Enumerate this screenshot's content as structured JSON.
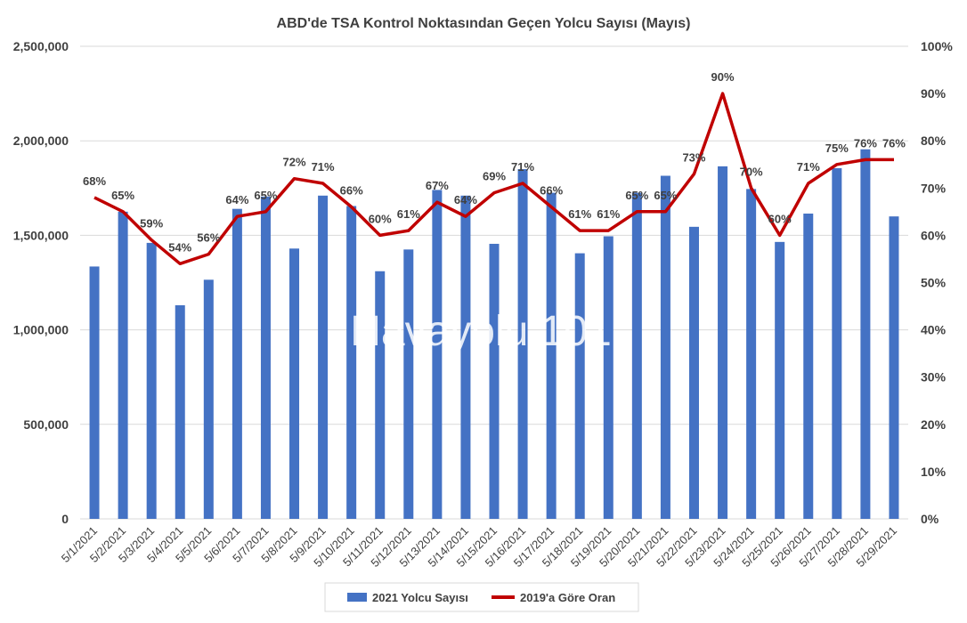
{
  "watermark": "Havayolu 101",
  "colors": {
    "bars": "#4472C4",
    "line": "#C00000",
    "grid": "#D9D9D9",
    "text": "#404040"
  },
  "chart_data": {
    "type": "bar",
    "title": "ABD'de TSA Kontrol Noktasından Geçen Yolcu Sayısı (Mayıs)",
    "categories": [
      "5/1/2021",
      "5/2/2021",
      "5/3/2021",
      "5/4/2021",
      "5/5/2021",
      "5/6/2021",
      "5/7/2021",
      "5/8/2021",
      "5/9/2021",
      "5/10/2021",
      "5/11/2021",
      "5/12/2021",
      "5/13/2021",
      "5/14/2021",
      "5/15/2021",
      "5/16/2021",
      "5/17/2021",
      "5/18/2021",
      "5/19/2021",
      "5/20/2021",
      "5/21/2021",
      "5/22/2021",
      "5/23/2021",
      "5/24/2021",
      "5/25/2021",
      "5/26/2021",
      "5/27/2021",
      "5/28/2021",
      "5/29/2021"
    ],
    "series": [
      {
        "name": "2021 Yolcu Sayısı",
        "type": "bar",
        "axis": "left",
        "values": [
          1335000,
          1625000,
          1460000,
          1130000,
          1265000,
          1640000,
          1705000,
          1430000,
          1710000,
          1655000,
          1310000,
          1425000,
          1740000,
          1710000,
          1455000,
          1850000,
          1725000,
          1405000,
          1495000,
          1725000,
          1815000,
          1545000,
          1865000,
          1745000,
          1465000,
          1615000,
          1855000,
          1955000,
          1600000
        ]
      },
      {
        "name": "2019'a Göre Oran",
        "type": "line",
        "axis": "right",
        "values": [
          68,
          65,
          59,
          54,
          56,
          64,
          65,
          72,
          71,
          66,
          60,
          61,
          67,
          64,
          69,
          71,
          66,
          61,
          61,
          65,
          65,
          73,
          90,
          70,
          60,
          71,
          75,
          76,
          76
        ],
        "labels": [
          "68%",
          "65%",
          "59%",
          "54%",
          "56%",
          "64%",
          "65%",
          "72%",
          "71%",
          "66%",
          "60%",
          "61%",
          "67%",
          "64%",
          "69%",
          "71%",
          "66%",
          "61%",
          "61%",
          "65%",
          "65%",
          "73%",
          "90%",
          "70%",
          "60%",
          "71%",
          "75%",
          "76%",
          "76%"
        ]
      }
    ],
    "y_left": {
      "ylim": [
        0,
        2500000
      ],
      "ticks": [
        0,
        500000,
        1000000,
        1500000,
        2000000,
        2500000
      ],
      "tick_labels": [
        "0",
        "500,000",
        "1,000,000",
        "1,500,000",
        "2,000,000",
        "2,500,000"
      ]
    },
    "y_right": {
      "ylim": [
        0,
        100
      ],
      "ticks": [
        0,
        10,
        20,
        30,
        40,
        50,
        60,
        70,
        80,
        90,
        100
      ],
      "tick_labels": [
        "0%",
        "10%",
        "20%",
        "30%",
        "40%",
        "50%",
        "60%",
        "70%",
        "80%",
        "90%",
        "100%"
      ]
    },
    "grid": true,
    "legend_position": "bottom"
  }
}
